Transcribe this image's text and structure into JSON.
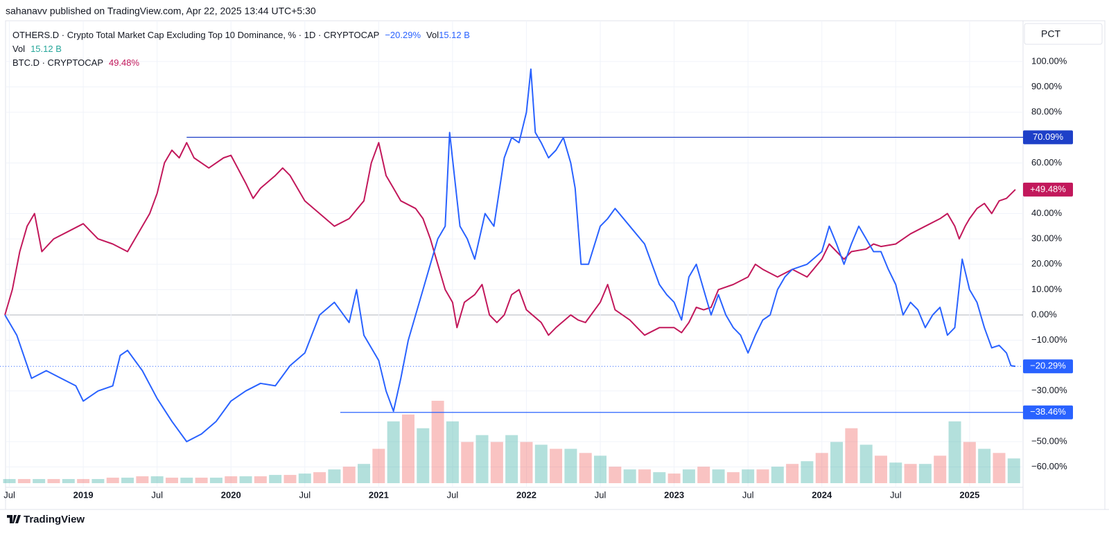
{
  "header": {
    "text": "sahanavv published on TradingView.com, Apr 22, 2025 13:44 UTC+5:30"
  },
  "footer": {
    "brand": "TradingView"
  },
  "chart_data": {
    "type": "line",
    "scale_label": "PCT",
    "xlim": [
      2018.474,
      2025.362
    ],
    "ylim": [
      -66.4,
      116.1
    ],
    "grid": true,
    "xticks": [
      {
        "value": 2018.5,
        "label": "Jul"
      },
      2019,
      {
        "value": 2019.5,
        "label": "Jul"
      },
      2020,
      {
        "value": 2020.5,
        "label": "Jul"
      },
      2021,
      {
        "value": 2021.5,
        "label": "Jul"
      },
      2022,
      {
        "value": 2022.5,
        "label": "Jul"
      },
      2023,
      {
        "value": 2023.5,
        "label": "Jul"
      },
      2024,
      {
        "value": 2024.5,
        "label": "Jul"
      },
      2025
    ],
    "yticks": [
      {
        "value": 100,
        "label": "100.00%"
      },
      {
        "value": 90,
        "label": "90.00%"
      },
      {
        "value": 80,
        "label": "80.00%"
      },
      {
        "value": 60,
        "label": "60.00%"
      },
      {
        "value": 40,
        "label": "40.00%"
      },
      {
        "value": 30,
        "label": "30.00%"
      },
      {
        "value": 20,
        "label": "20.00%"
      },
      {
        "value": 10,
        "label": "10.00%"
      },
      {
        "value": 0,
        "label": "0.00%"
      },
      {
        "value": -10,
        "label": "−10.00%"
      },
      {
        "value": -30,
        "label": "−30.00%"
      },
      {
        "value": -50,
        "label": "−50.00%"
      },
      {
        "value": -60,
        "label": "−60.00%"
      }
    ],
    "series": [
      {
        "name": "OTHERS.D · Crypto Total Market Cap Excluding Top 10 Dominance, % · 1D · CRYPTOCAP",
        "legend_value": "−20.29%",
        "last_label": "−20.29%",
        "color": "#2962ff",
        "x": [
          2018.47,
          2018.55,
          2018.65,
          2018.75,
          2018.85,
          2018.95,
          2019.0,
          2019.1,
          2019.2,
          2019.25,
          2019.3,
          2019.4,
          2019.5,
          2019.6,
          2019.7,
          2019.8,
          2019.9,
          2020.0,
          2020.1,
          2020.2,
          2020.3,
          2020.4,
          2020.5,
          2020.6,
          2020.7,
          2020.8,
          2020.85,
          2020.9,
          2021.0,
          2021.05,
          2021.1,
          2021.15,
          2021.2,
          2021.3,
          2021.35,
          2021.4,
          2021.45,
          2021.48,
          2021.55,
          2021.6,
          2021.65,
          2021.72,
          2021.78,
          2021.85,
          2021.9,
          2021.95,
          2022.0,
          2022.03,
          2022.06,
          2022.1,
          2022.15,
          2022.2,
          2022.25,
          2022.3,
          2022.33,
          2022.37,
          2022.42,
          2022.5,
          2022.55,
          2022.6,
          2022.7,
          2022.8,
          2022.9,
          2022.95,
          2023.0,
          2023.05,
          2023.1,
          2023.15,
          2023.2,
          2023.25,
          2023.3,
          2023.35,
          2023.4,
          2023.45,
          2023.5,
          2023.55,
          2023.6,
          2023.65,
          2023.7,
          2023.75,
          2023.8,
          2023.9,
          2024.0,
          2024.05,
          2024.1,
          2024.15,
          2024.2,
          2024.25,
          2024.3,
          2024.35,
          2024.4,
          2024.45,
          2024.5,
          2024.55,
          2024.6,
          2024.65,
          2024.7,
          2024.75,
          2024.8,
          2024.85,
          2024.9,
          2024.95,
          2025.0,
          2025.05,
          2025.1,
          2025.15,
          2025.2,
          2025.25,
          2025.28,
          2025.31
        ],
        "values": [
          0,
          -8,
          -25,
          -22,
          -25,
          -28,
          -34,
          -30,
          -28,
          -16,
          -14,
          -22,
          -33,
          -42,
          -50,
          -47,
          -42,
          -34,
          -30,
          -27,
          -28,
          -20,
          -15,
          0,
          5,
          -3,
          10,
          -8,
          -18,
          -30,
          -38,
          -25,
          -10,
          10,
          20,
          30,
          35,
          72,
          35,
          30,
          22,
          40,
          35,
          62,
          70,
          68,
          80,
          97,
          72,
          68,
          62,
          65,
          70,
          60,
          50,
          20,
          20,
          35,
          38,
          42,
          35,
          28,
          12,
          8,
          5,
          -2,
          15,
          20,
          10,
          0,
          8,
          0,
          -5,
          -8,
          -15,
          -8,
          -2,
          0,
          10,
          15,
          18,
          20,
          25,
          35,
          28,
          20,
          28,
          35,
          30,
          25,
          25,
          18,
          12,
          0,
          5,
          2,
          -5,
          0,
          3,
          -8,
          -5,
          22,
          10,
          5,
          -5,
          -13,
          -12,
          -15,
          -20,
          -20.29
        ]
      },
      {
        "name": "BTC.D · CRYPTOCAP",
        "legend_value": "49.48%",
        "last_label": "+49.48%",
        "color": "#c2185b",
        "x": [
          2018.47,
          2018.52,
          2018.57,
          2018.62,
          2018.67,
          2018.72,
          2018.8,
          2018.9,
          2019.0,
          2019.1,
          2019.2,
          2019.3,
          2019.35,
          2019.45,
          2019.5,
          2019.55,
          2019.6,
          2019.65,
          2019.7,
          2019.75,
          2019.85,
          2019.95,
          2020.0,
          2020.1,
          2020.15,
          2020.2,
          2020.3,
          2020.35,
          2020.4,
          2020.5,
          2020.6,
          2020.7,
          2020.8,
          2020.9,
          2020.95,
          2021.0,
          2021.05,
          2021.1,
          2021.15,
          2021.25,
          2021.3,
          2021.35,
          2021.4,
          2021.45,
          2021.5,
          2021.53,
          2021.58,
          2021.65,
          2021.7,
          2021.75,
          2021.8,
          2021.85,
          2021.9,
          2021.95,
          2022.0,
          2022.1,
          2022.15,
          2022.2,
          2022.3,
          2022.35,
          2022.4,
          2022.5,
          2022.55,
          2022.6,
          2022.7,
          2022.75,
          2022.8,
          2022.9,
          2023.0,
          2023.05,
          2023.1,
          2023.15,
          2023.2,
          2023.25,
          2023.3,
          2023.4,
          2023.5,
          2023.55,
          2023.6,
          2023.7,
          2023.8,
          2023.9,
          2024.0,
          2024.05,
          2024.1,
          2024.15,
          2024.2,
          2024.3,
          2024.35,
          2024.4,
          2024.5,
          2024.6,
          2024.7,
          2024.8,
          2024.85,
          2024.9,
          2024.93,
          2024.97,
          2025.0,
          2025.05,
          2025.1,
          2025.15,
          2025.2,
          2025.25,
          2025.31
        ],
        "values": [
          0,
          10,
          25,
          35,
          40,
          25,
          30,
          33,
          36,
          30,
          28,
          25,
          30,
          40,
          48,
          60,
          65,
          62,
          68,
          62,
          58,
          62,
          63,
          52,
          46,
          50,
          55,
          58,
          55,
          45,
          40,
          35,
          38,
          45,
          60,
          68,
          55,
          50,
          45,
          42,
          38,
          30,
          20,
          10,
          5,
          -5,
          5,
          8,
          12,
          0,
          -3,
          0,
          8,
          10,
          2,
          -3,
          -8,
          -5,
          0,
          -2,
          -3,
          5,
          12,
          2,
          -2,
          -5,
          -8,
          -5,
          -5,
          -7,
          -3,
          3,
          2,
          3,
          10,
          12,
          15,
          20,
          18,
          15,
          18,
          15,
          22,
          28,
          25,
          22,
          25,
          26,
          28,
          27,
          28,
          32,
          35,
          38,
          40,
          35,
          30,
          35,
          38,
          42,
          44,
          40,
          45,
          46,
          49.48
        ]
      }
    ],
    "volume": {
      "name": "Vol",
      "legend_value": "15.12 B",
      "up_color": "#26a69a",
      "down_color": "#ef5350",
      "vlim": [
        0,
        62
      ],
      "x": [
        2018.5,
        2018.6,
        2018.7,
        2018.8,
        2018.9,
        2019.0,
        2019.1,
        2019.2,
        2019.3,
        2019.4,
        2019.5,
        2019.6,
        2019.7,
        2019.8,
        2019.9,
        2020.0,
        2020.1,
        2020.2,
        2020.3,
        2020.4,
        2020.5,
        2020.6,
        2020.7,
        2020.8,
        2020.9,
        2021.0,
        2021.1,
        2021.2,
        2021.3,
        2021.4,
        2021.5,
        2021.6,
        2021.7,
        2021.8,
        2021.9,
        2022.0,
        2022.1,
        2022.2,
        2022.3,
        2022.4,
        2022.5,
        2022.6,
        2022.7,
        2022.8,
        2022.9,
        2023.0,
        2023.1,
        2023.2,
        2023.3,
        2023.4,
        2023.5,
        2023.6,
        2023.7,
        2023.8,
        2023.9,
        2024.0,
        2024.1,
        2024.2,
        2024.3,
        2024.4,
        2024.5,
        2024.6,
        2024.7,
        2024.8,
        2024.9,
        2025.0,
        2025.1,
        2025.2,
        2025.3
      ],
      "values": [
        3,
        3,
        3,
        3,
        3,
        3,
        3,
        4,
        4,
        5,
        5,
        4,
        4,
        4,
        4,
        5,
        5,
        5,
        6,
        6,
        7,
        8,
        10,
        12,
        14,
        25,
        45,
        50,
        40,
        60,
        45,
        30,
        35,
        30,
        35,
        30,
        28,
        25,
        25,
        22,
        20,
        12,
        10,
        10,
        8,
        7,
        10,
        12,
        10,
        8,
        10,
        10,
        12,
        14,
        16,
        22,
        30,
        40,
        28,
        20,
        15,
        14,
        14,
        20,
        45,
        30,
        25,
        22,
        18
      ]
    },
    "annotations": [
      {
        "value": 70.09,
        "label": "70.09%",
        "color": "#1e40c8",
        "start": 2019.7
      },
      {
        "value": -38.46,
        "label": "−38.46%",
        "color": "#2962ff",
        "start": 2020.74
      }
    ]
  }
}
